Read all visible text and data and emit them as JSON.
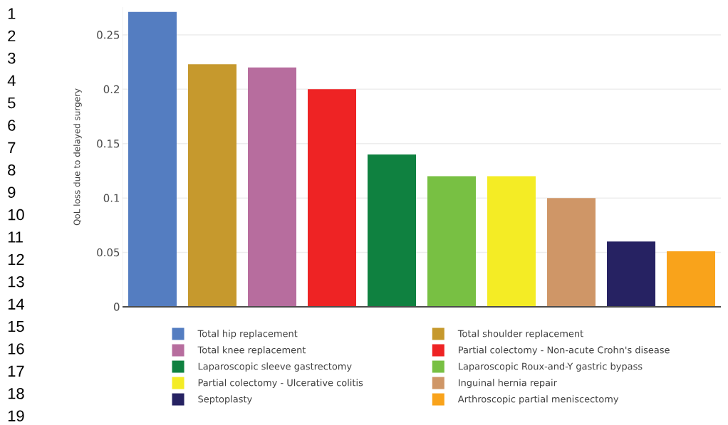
{
  "chart_data": {
    "type": "bar",
    "ylabel": "QoL loss due to delayed surgery",
    "categories": [
      null,
      null,
      null,
      null,
      null,
      null,
      null,
      null,
      null,
      null
    ],
    "series": [
      {
        "name": "Total hip replacement",
        "color": "#547dc1",
        "values": [
          0.271,
          null,
          null,
          null,
          null,
          null,
          null,
          null,
          null,
          null
        ]
      },
      {
        "name": "Total shoulder replacement",
        "color": "#c6992d",
        "values": [
          null,
          0.223,
          null,
          null,
          null,
          null,
          null,
          null,
          null,
          null
        ]
      },
      {
        "name": "Total knee replacement",
        "color": "#b76d9e",
        "values": [
          null,
          null,
          0.22,
          null,
          null,
          null,
          null,
          null,
          null,
          null
        ]
      },
      {
        "name": "Partial colectomy - Non-acute Crohn's disease",
        "color": "#ee2324",
        "values": [
          null,
          null,
          null,
          0.2,
          null,
          null,
          null,
          null,
          null,
          null
        ]
      },
      {
        "name": "Laparoscopic sleeve gastrectomy",
        "color": "#0f8140",
        "values": [
          null,
          null,
          null,
          null,
          0.14,
          null,
          null,
          null,
          null,
          null
        ]
      },
      {
        "name": "Laparoscopic Roux-and-Y gastric bypass",
        "color": "#78c043",
        "values": [
          null,
          null,
          null,
          null,
          null,
          0.12,
          null,
          null,
          null,
          null
        ]
      },
      {
        "name": "Partial colectomy - Ulcerative colitis",
        "color": "#f4ec25",
        "values": [
          null,
          null,
          null,
          null,
          null,
          null,
          0.12,
          null,
          null,
          null
        ]
      },
      {
        "name": "Inguinal hernia repair",
        "color": "#cf9667",
        "values": [
          null,
          null,
          null,
          null,
          null,
          null,
          null,
          0.1,
          null,
          null
        ]
      },
      {
        "name": "Septoplasty",
        "color": "#262262",
        "values": [
          null,
          null,
          null,
          null,
          null,
          null,
          null,
          null,
          0.06,
          null
        ]
      },
      {
        "name": "Arthroscopic partial meniscectomy",
        "color": "#f9a31b",
        "values": [
          null,
          null,
          null,
          null,
          null,
          null,
          null,
          null,
          null,
          0.051
        ]
      }
    ],
    "ylim": [
      0,
      0.2755
    ],
    "yticks": [
      0,
      0.05,
      0.1,
      0.15,
      0.2,
      0.25
    ],
    "grid": "y",
    "legend": "bottom",
    "annotations": [
      "1",
      "2",
      "3",
      "4",
      "5",
      "6",
      "7",
      "8",
      "9",
      "10",
      "11",
      "12",
      "13",
      "14",
      "15",
      "16",
      "17",
      "18",
      "19"
    ]
  }
}
